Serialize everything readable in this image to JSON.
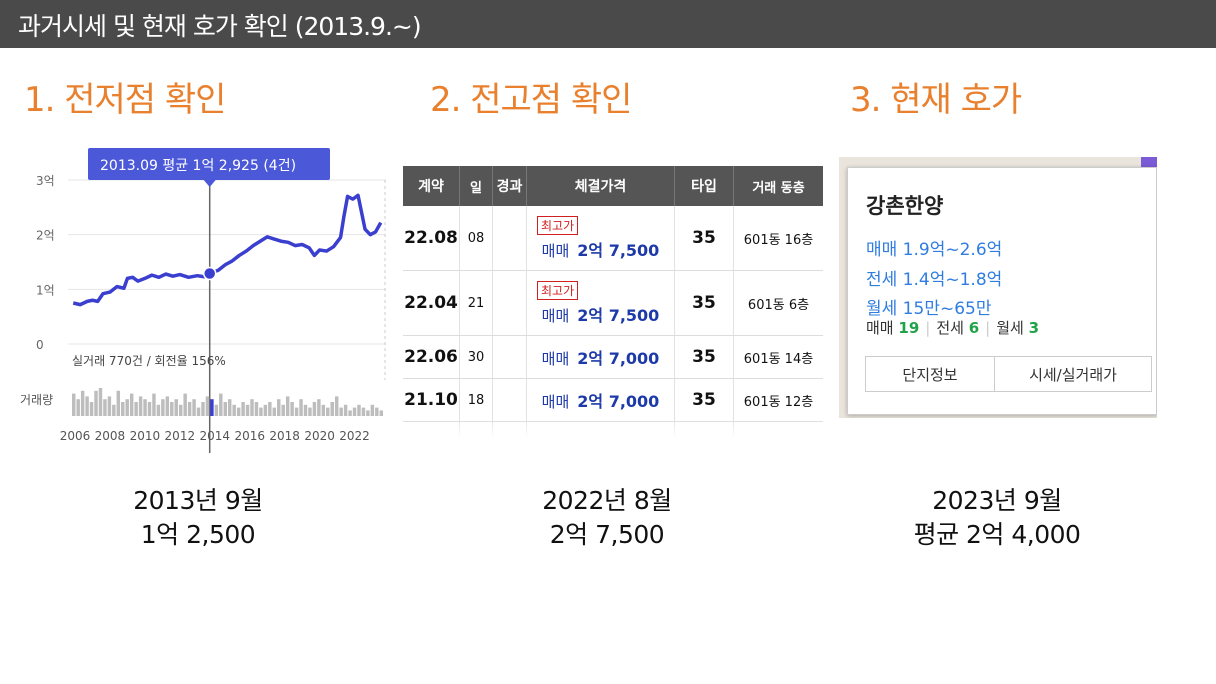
{
  "header": {
    "title": "과거시세 및 현재 호가 확인 (2013.9.~)"
  },
  "sections": [
    {
      "title": "1. 전저점 확인",
      "caption_line1": "2013년 9월",
      "caption_line2": "1억 2,500"
    },
    {
      "title": "2. 전고점 확인",
      "caption_line1": "2022년 8월",
      "caption_line2": "2억 7,500"
    },
    {
      "title": "3. 현재 호가",
      "caption_line1": "2023년 9월",
      "caption_line2": "평균 2억 4,000"
    }
  ],
  "chart_data": {
    "type": "line",
    "tooltip": "2013.09 평균 1억 2,925 (4건)",
    "y_tick_labels": [
      "3억",
      "2억",
      "1억",
      "0"
    ],
    "x_tick_labels": [
      "2006",
      "2008",
      "2010",
      "2012",
      "2014",
      "2016",
      "2018",
      "2020",
      "2022"
    ],
    "volume_label": "거래량",
    "stats_text": "실거래 770건 / 회전율 156%",
    "ylim": [
      0,
      3
    ],
    "xlim": [
      2005.6,
      2023.8
    ],
    "highlight": {
      "x": 2013.71,
      "y": 1.29
    },
    "series": [
      {
        "values": [
          [
            2005.9,
            0.75
          ],
          [
            2006.3,
            0.72
          ],
          [
            2006.7,
            0.78
          ],
          [
            2007.0,
            0.8
          ],
          [
            2007.3,
            0.78
          ],
          [
            2007.6,
            0.92
          ],
          [
            2008.0,
            0.95
          ],
          [
            2008.4,
            1.05
          ],
          [
            2008.8,
            1.02
          ],
          [
            2009.0,
            1.2
          ],
          [
            2009.3,
            1.22
          ],
          [
            2009.6,
            1.15
          ],
          [
            2010.0,
            1.2
          ],
          [
            2010.4,
            1.26
          ],
          [
            2010.8,
            1.22
          ],
          [
            2011.2,
            1.28
          ],
          [
            2011.6,
            1.24
          ],
          [
            2012.0,
            1.27
          ],
          [
            2012.5,
            1.22
          ],
          [
            2013.0,
            1.25
          ],
          [
            2013.4,
            1.23
          ],
          [
            2013.71,
            1.29
          ],
          [
            2014.2,
            1.35
          ],
          [
            2014.6,
            1.45
          ],
          [
            2015.0,
            1.52
          ],
          [
            2015.4,
            1.62
          ],
          [
            2015.8,
            1.7
          ],
          [
            2016.2,
            1.8
          ],
          [
            2016.6,
            1.88
          ],
          [
            2017.0,
            1.96
          ],
          [
            2017.4,
            1.92
          ],
          [
            2017.8,
            1.88
          ],
          [
            2018.2,
            1.86
          ],
          [
            2018.6,
            1.8
          ],
          [
            2019.0,
            1.82
          ],
          [
            2019.4,
            1.76
          ],
          [
            2019.7,
            1.62
          ],
          [
            2020.0,
            1.72
          ],
          [
            2020.4,
            1.7
          ],
          [
            2020.8,
            1.78
          ],
          [
            2021.2,
            1.95
          ],
          [
            2021.4,
            2.35
          ],
          [
            2021.6,
            2.7
          ],
          [
            2021.9,
            2.65
          ],
          [
            2022.2,
            2.72
          ],
          [
            2022.6,
            2.1
          ],
          [
            2022.9,
            2.0
          ],
          [
            2023.2,
            2.05
          ],
          [
            2023.5,
            2.22
          ]
        ]
      }
    ],
    "volume": [
      0.8,
      0.6,
      0.9,
      0.7,
      0.5,
      0.9,
      1.0,
      0.6,
      0.7,
      0.4,
      0.9,
      0.5,
      0.6,
      0.8,
      0.5,
      0.7,
      0.6,
      0.5,
      0.8,
      0.4,
      0.6,
      0.7,
      0.5,
      0.6,
      0.4,
      0.8,
      0.5,
      0.6,
      0.3,
      0.5,
      0.7,
      0.6,
      0.4,
      0.8,
      0.5,
      0.6,
      0.4,
      0.3,
      0.5,
      0.4,
      0.6,
      0.5,
      0.3,
      0.4,
      0.5,
      0.3,
      0.6,
      0.4,
      0.7,
      0.5,
      0.3,
      0.6,
      0.4,
      0.3,
      0.5,
      0.6,
      0.4,
      0.3,
      0.5,
      0.7,
      0.3,
      0.4,
      0.2,
      0.3,
      0.4,
      0.3,
      0.2,
      0.4,
      0.3,
      0.2
    ]
  },
  "table": {
    "headers": {
      "month": "계약",
      "day": "일",
      "elapsed": "경과",
      "price": "체결가격",
      "type": "타입",
      "deal": "거래 동층"
    },
    "rows": [
      {
        "month": "22.08",
        "day": "08",
        "badge": "최고가",
        "kind": "매매",
        "price": "2억 7,500",
        "type": "35",
        "deal": "601동   16층"
      },
      {
        "month": "22.04",
        "day": "21",
        "badge": "최고가",
        "kind": "매매",
        "price": "2억 7,500",
        "type": "35",
        "deal": "601동    6층"
      },
      {
        "month": "22.06",
        "day": "30",
        "badge": "",
        "kind": "매매",
        "price": "2억 7,000",
        "type": "35",
        "deal": "601동   14층"
      },
      {
        "month": "21.10",
        "day": "18",
        "badge": "",
        "kind": "매매",
        "price": "2억 7,000",
        "type": "35",
        "deal": "601동   12층"
      }
    ]
  },
  "popup": {
    "name": "강촌한양",
    "sale": "매매 1.9억~2.6억",
    "jeonse": "전세 1.4억~1.8억",
    "monthly": "월세 15만~65만",
    "count_sale_label": "매매",
    "count_sale": "19",
    "count_jeonse_label": "전세",
    "count_jeonse": "6",
    "count_monthly_label": "월세",
    "count_monthly": "3",
    "btn_info": "단지정보",
    "btn_price": "시세/실거래가"
  },
  "colors": {
    "accent": "#e8802e",
    "header_bg": "#4a4a4a",
    "line": "#3b3fcf",
    "price_blue": "#1d3aa8",
    "link_blue": "#2f7de1",
    "count_green": "#21a34a",
    "badge_red": "#d02020"
  }
}
